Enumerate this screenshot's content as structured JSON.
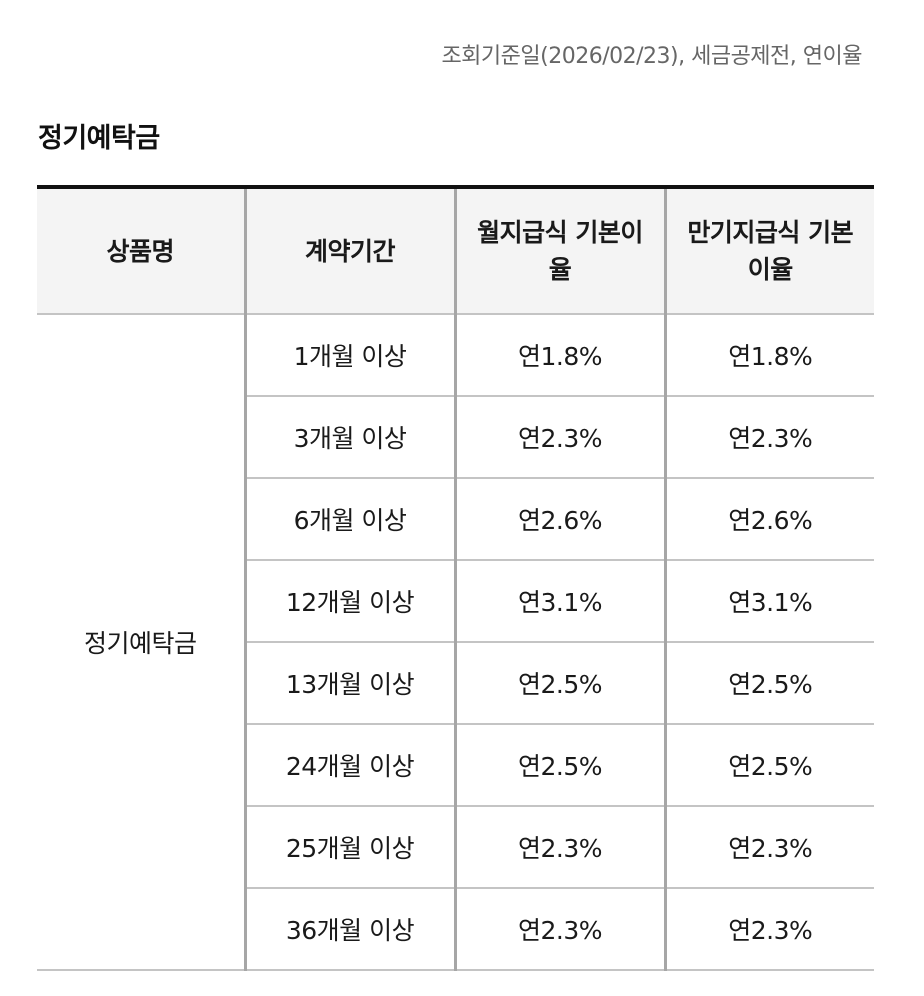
{
  "note": "조회기준일(2026/02/23), 세금공제전, 연이율",
  "section_title": "정기예탁금",
  "table": {
    "headers": [
      "상품명",
      "계약기간",
      "월지급식 기본이율",
      "만기지급식 기본이율"
    ],
    "product_name": "정기예탁금",
    "rows": [
      {
        "period": "1개월 이상",
        "monthly": "연1.8%",
        "maturity": "연1.8%"
      },
      {
        "period": "3개월 이상",
        "monthly": "연2.3%",
        "maturity": "연2.3%"
      },
      {
        "period": "6개월 이상",
        "monthly": "연2.6%",
        "maturity": "연2.6%"
      },
      {
        "period": "12개월 이상",
        "monthly": "연3.1%",
        "maturity": "연3.1%"
      },
      {
        "period": "13개월 이상",
        "monthly": "연2.5%",
        "maturity": "연2.5%"
      },
      {
        "period": "24개월 이상",
        "monthly": "연2.5%",
        "maturity": "연2.5%"
      },
      {
        "period": "25개월 이상",
        "monthly": "연2.3%",
        "maturity": "연2.3%"
      },
      {
        "period": "36개월 이상",
        "monthly": "연2.3%",
        "maturity": "연2.3%"
      }
    ]
  }
}
